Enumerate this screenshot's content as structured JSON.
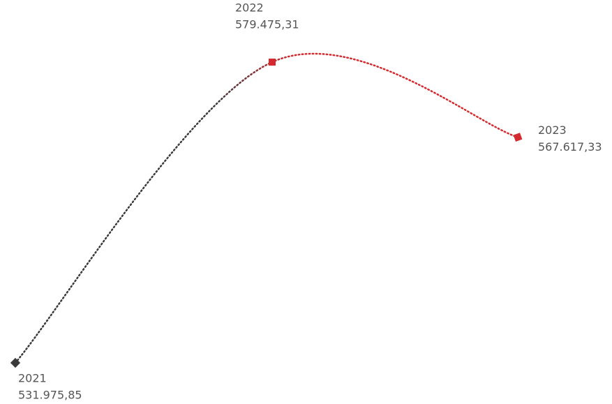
{
  "chart_data": {
    "type": "line",
    "categories": [
      "2021",
      "2022",
      "2023"
    ],
    "series": [
      {
        "color": "#d42a2f",
        "values": [
          531975.85,
          579475.31,
          567617.33
        ],
        "value_labels": [
          "531.975,85",
          "579.475,31",
          "567.617,33"
        ]
      }
    ],
    "marker_colors": [
      "#3a3a3a",
      "#d42a2f",
      "#d42a2f"
    ],
    "line_style": "dotted"
  }
}
